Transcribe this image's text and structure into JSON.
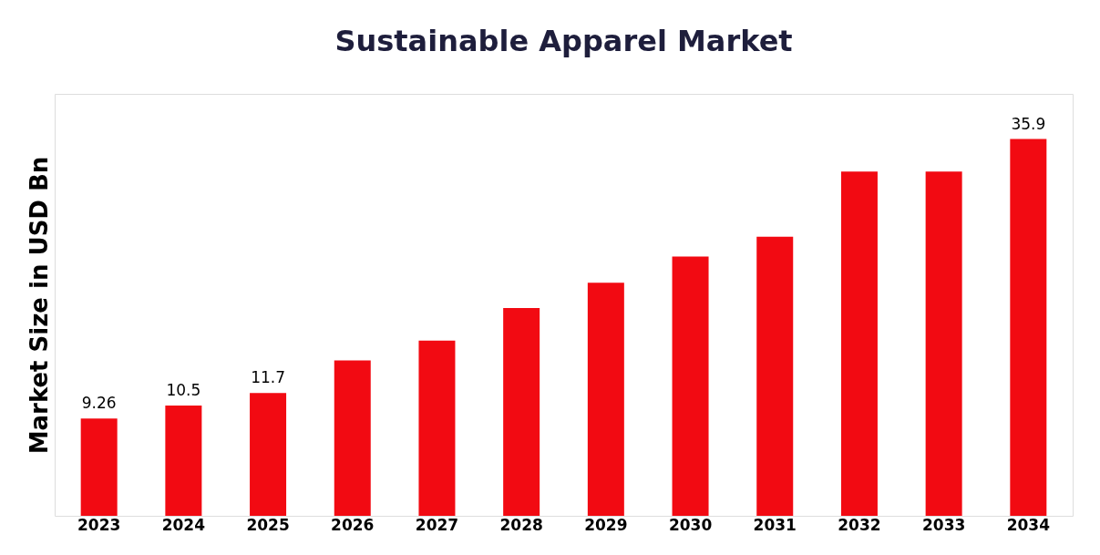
{
  "chart_data": {
    "type": "bar",
    "title": "Sustainable  Apparel Market",
    "ylabel": "Market Size in USD Bn",
    "categories": [
      "2023",
      "2024",
      "2025",
      "2026",
      "2027",
      "2028",
      "2029",
      "2030",
      "2031",
      "2032",
      "2033",
      "2034"
    ],
    "values": [
      9.26,
      10.5,
      11.7,
      14.8,
      16.7,
      19.8,
      22.2,
      24.7,
      26.6,
      32.8,
      32.8,
      35.9
    ],
    "value_labels": [
      "9.26",
      "10.5",
      "11.7",
      null,
      null,
      null,
      null,
      null,
      null,
      null,
      null,
      "35.9"
    ],
    "color": "#f20a12",
    "grid": false
  }
}
